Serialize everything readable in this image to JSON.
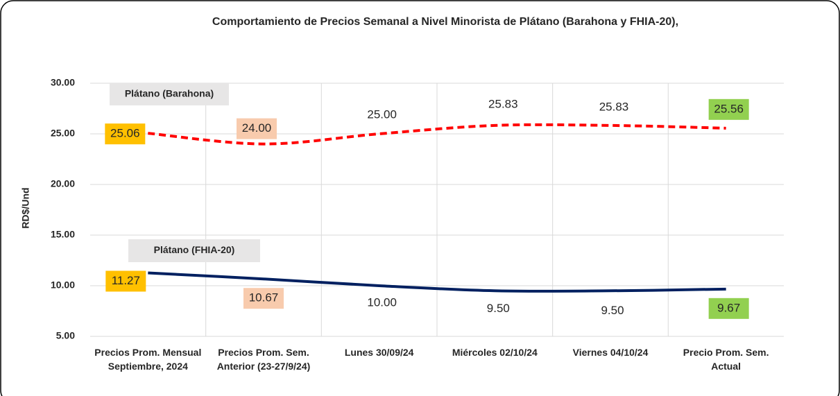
{
  "chart_data": {
    "type": "line",
    "title": "Comportamiento de Precios Semanal a Nivel Minorista de Plátano (Barahona y FHIA-20),",
    "y_label": "RD$/Und",
    "categories": [
      "Precios Prom. Mensual Septiembre, 2024",
      "Precios Prom. Sem. Anterior (23-27/9/24)",
      "Lunes  30/09/24",
      "Miércoles 02/10/24",
      "Viernes 04/10/24",
      "Precio Prom. Sem. Actual"
    ],
    "series": [
      {
        "name": "Plátano (Barahona)",
        "color": "#ff0000",
        "dashed": true,
        "values": [
          25.06,
          24.0,
          25.0,
          25.83,
          25.83,
          25.56
        ],
        "value_labels": [
          "25.06",
          "24.00",
          "25.00",
          "25.83",
          "25.83",
          "25.56"
        ]
      },
      {
        "name": "Plátano (FHIA-20)",
        "color": "#002060",
        "dashed": false,
        "values": [
          11.27,
          10.67,
          10.0,
          9.5,
          9.5,
          9.67
        ],
        "value_labels": [
          "11.27",
          "10.67",
          "10.00",
          "9.50",
          "9.50",
          "9.67"
        ]
      }
    ],
    "ylim": [
      5,
      30
    ],
    "yticks": [
      {
        "value": 5,
        "label": "5.00"
      },
      {
        "value": 10,
        "label": "10.00"
      },
      {
        "value": 15,
        "label": "15.00"
      },
      {
        "value": 20,
        "label": "20.00"
      },
      {
        "value": 25,
        "label": "25.00"
      },
      {
        "value": 30,
        "label": "30.00"
      }
    ],
    "grid": true
  }
}
